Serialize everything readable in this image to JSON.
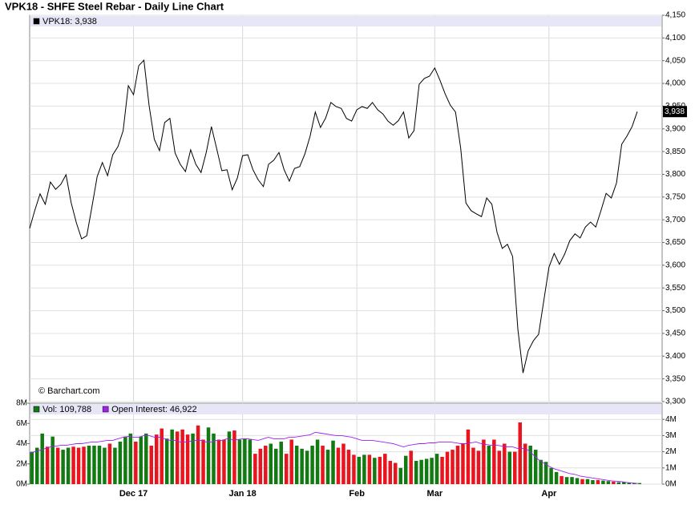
{
  "chart_data": [
    {
      "type": "line",
      "title": "VPK18 - SHFE Steel Rebar - Daily Line Chart",
      "annotation": "© Barchart.com",
      "legend": "top-left",
      "grid": true,
      "categories": [
        null,
        null,
        null,
        null,
        null,
        null,
        null,
        null,
        null,
        null,
        null,
        null,
        null,
        null,
        null,
        null,
        null,
        null,
        null,
        null,
        "Dec 17",
        null,
        null,
        null,
        null,
        null,
        null,
        null,
        null,
        null,
        null,
        null,
        null,
        null,
        null,
        null,
        null,
        null,
        null,
        null,
        null,
        "Jan 18",
        null,
        null,
        null,
        null,
        null,
        null,
        null,
        null,
        null,
        null,
        null,
        null,
        null,
        null,
        null,
        null,
        null,
        null,
        null,
        null,
        null,
        "Feb",
        null,
        null,
        null,
        null,
        null,
        null,
        null,
        null,
        null,
        null,
        null,
        null,
        null,
        null,
        "Mar",
        null,
        null,
        null,
        null,
        null,
        null,
        null,
        null,
        null,
        null,
        null,
        null,
        null,
        null,
        null,
        null,
        null,
        null,
        null,
        null,
        null,
        "Apr",
        null,
        null,
        null,
        null,
        null,
        null,
        null,
        null,
        null,
        null,
        null,
        null,
        null,
        null,
        null,
        null,
        null
      ],
      "series": [
        {
          "name": "VPK18: 3,938",
          "color": "#000000",
          "last_label": "3,938",
          "values": [
            3681,
            3721,
            3757,
            3734,
            3783,
            3767,
            3778,
            3799,
            3737,
            3693,
            3658,
            3665,
            3729,
            3795,
            3826,
            3797,
            3843,
            3861,
            3896,
            3995,
            3975,
            4039,
            4051,
            3951,
            3877,
            3852,
            3914,
            3923,
            3847,
            3822,
            3806,
            3854,
            3822,
            3804,
            3848,
            3905,
            3857,
            3808,
            3810,
            3766,
            3792,
            3841,
            3843,
            3810,
            3788,
            3773,
            3822,
            3831,
            3848,
            3810,
            3785,
            3813,
            3817,
            3845,
            3884,
            3937,
            3903,
            3924,
            3958,
            3949,
            3945,
            3923,
            3917,
            3942,
            3949,
            3945,
            3958,
            3942,
            3933,
            3917,
            3908,
            3918,
            3937,
            3880,
            3896,
            3998,
            4011,
            4016,
            4034,
            4007,
            3977,
            3952,
            3937,
            3857,
            3737,
            3720,
            3713,
            3707,
            3748,
            3734,
            3672,
            3637,
            3646,
            3619,
            3460,
            3363,
            3412,
            3434,
            3448,
            3522,
            3596,
            3626,
            3602,
            3624,
            3654,
            3669,
            3660,
            3684,
            3695,
            3684,
            3720,
            3758,
            3748,
            3781,
            3866,
            3884,
            3905,
            3938
          ]
        }
      ],
      "ylim": [
        3300,
        4150
      ],
      "yticks": [
        {
          "value": 3300,
          "label": "3,300"
        },
        {
          "value": 3350,
          "label": "3,350"
        },
        {
          "value": 3400,
          "label": "3,400"
        },
        {
          "value": 3450,
          "label": "3,450"
        },
        {
          "value": 3500,
          "label": "3,500"
        },
        {
          "value": 3550,
          "label": "3,550"
        },
        {
          "value": 3600,
          "label": "3,600"
        },
        {
          "value": 3650,
          "label": "3,650"
        },
        {
          "value": 3700,
          "label": "3,700"
        },
        {
          "value": 3750,
          "label": "3,750"
        },
        {
          "value": 3800,
          "label": "3,800"
        },
        {
          "value": 3850,
          "label": "3,850"
        },
        {
          "value": 3900,
          "label": "3,900"
        },
        {
          "value": 3950,
          "label": "3,950"
        },
        {
          "value": 4000,
          "label": "4,000"
        },
        {
          "value": 4050,
          "label": "4,050"
        },
        {
          "value": 4100,
          "label": "4,100"
        },
        {
          "value": 4150,
          "label": "4,150"
        }
      ]
    },
    {
      "type": "bar",
      "grid": true,
      "legend": "top-left",
      "categories": [
        null,
        null,
        null,
        null,
        null,
        null,
        null,
        null,
        null,
        null,
        null,
        null,
        null,
        null,
        null,
        null,
        null,
        null,
        null,
        null,
        "Dec 17",
        null,
        null,
        null,
        null,
        null,
        null,
        null,
        null,
        null,
        null,
        null,
        null,
        null,
        null,
        null,
        null,
        null,
        null,
        null,
        null,
        "Jan 18",
        null,
        null,
        null,
        null,
        null,
        null,
        null,
        null,
        null,
        null,
        null,
        null,
        null,
        null,
        null,
        null,
        null,
        null,
        null,
        null,
        null,
        "Feb",
        null,
        null,
        null,
        null,
        null,
        null,
        null,
        null,
        null,
        null,
        null,
        null,
        null,
        null,
        "Mar",
        null,
        null,
        null,
        null,
        null,
        null,
        null,
        null,
        null,
        null,
        null,
        null,
        null,
        null,
        null,
        null,
        null,
        null,
        null,
        null,
        null,
        "Apr",
        null,
        null,
        null,
        null,
        null,
        null,
        null,
        null,
        null,
        null,
        null,
        null,
        null,
        null,
        null,
        null,
        null
      ],
      "series": [
        {
          "name": "Vol: 109,788",
          "color": "#137a13",
          "down_color": "#e8141e",
          "values": [
            3200000,
            3600000,
            5000000,
            3700000,
            4700000,
            3600000,
            3400000,
            3600000,
            3700000,
            3600000,
            3700000,
            3800000,
            3800000,
            3800000,
            3600000,
            4000000,
            3600000,
            4200000,
            4700000,
            5000000,
            4200000,
            4700000,
            5000000,
            3800000,
            4900000,
            5500000,
            4500000,
            5400000,
            5200000,
            5400000,
            4900000,
            5000000,
            5800000,
            4400000,
            5600000,
            5000000,
            4400000,
            4400000,
            5200000,
            5300000,
            4400000,
            4500000,
            4400000,
            3000000,
            3500000,
            3800000,
            4000000,
            3500000,
            4200000,
            3000000,
            4400000,
            3800000,
            3500000,
            3300000,
            3800000,
            4400000,
            3800000,
            3400000,
            4300000,
            3600000,
            4000000,
            3400000,
            2900000,
            2700000,
            2900000,
            2900000,
            2600000,
            2700000,
            3000000,
            2300000,
            2100000,
            1600000,
            2800000,
            3300000,
            2300000,
            2400000,
            2500000,
            2600000,
            3000000,
            2700000,
            3200000,
            3400000,
            3800000,
            4000000,
            5400000,
            3600000,
            3300000,
            4400000,
            3800000,
            4400000,
            3300000,
            4000000,
            3200000,
            3200000,
            6100000,
            4000000,
            3800000,
            3400000,
            2400000,
            2200000,
            1600000,
            1200000,
            800000,
            700000,
            700000,
            600000,
            500000,
            500000,
            400000,
            400000,
            350000,
            300000,
            250000,
            200000,
            200000,
            150000,
            120000,
            109788
          ]
        },
        {
          "name": "Open Interest: 46,922",
          "color": "#a020f0",
          "type": "line",
          "axis": "y2",
          "values": [
            1900000,
            2000000,
            2100000,
            2200000,
            2300000,
            2350000,
            2400000,
            2400000,
            2450000,
            2500000,
            2500000,
            2550000,
            2600000,
            2600000,
            2650000,
            2700000,
            2700000,
            2800000,
            2900000,
            2950000,
            2900000,
            2900000,
            3000000,
            3000000,
            2900000,
            2900000,
            2800000,
            2700000,
            2700000,
            2600000,
            2600000,
            2650000,
            2700000,
            2700000,
            2600000,
            2600000,
            2700000,
            2700000,
            2800000,
            2750000,
            2750000,
            2800000,
            2800000,
            2750000,
            2700000,
            2800000,
            2900000,
            2800000,
            2800000,
            2800000,
            2900000,
            2900000,
            2950000,
            3000000,
            3050000,
            3200000,
            3150000,
            3100000,
            3050000,
            3000000,
            3000000,
            2950000,
            2900000,
            2800000,
            2700000,
            2700000,
            2700000,
            2650000,
            2600000,
            2550000,
            2500000,
            2400000,
            2300000,
            2400000,
            2450000,
            2500000,
            2500000,
            2550000,
            2550000,
            2600000,
            2600000,
            2600000,
            2550000,
            2500000,
            2500000,
            2550000,
            2600000,
            2500000,
            2450000,
            2400000,
            2400000,
            2350000,
            2300000,
            2300000,
            2200000,
            2200000,
            2100000,
            1800000,
            1500000,
            1300000,
            1100000,
            950000,
            850000,
            750000,
            650000,
            600000,
            500000,
            450000,
            400000,
            350000,
            300000,
            250000,
            200000,
            180000,
            150000,
            100000,
            70000,
            46922
          ]
        }
      ],
      "ylim": [
        0,
        8000000
      ],
      "yticks": [
        {
          "value": 0,
          "label": "0M"
        },
        {
          "value": 2000000,
          "label": "2M"
        },
        {
          "value": 4000000,
          "label": "4M"
        },
        {
          "value": 6000000,
          "label": "6M"
        },
        {
          "value": 8000000,
          "label": "8M"
        }
      ],
      "y2lim": [
        0,
        5000000
      ],
      "y2ticks": [
        {
          "value": 0,
          "label": "0M"
        },
        {
          "value": 1000000,
          "label": "1M"
        },
        {
          "value": 2000000,
          "label": "2M"
        },
        {
          "value": 3000000,
          "label": "3M"
        },
        {
          "value": 4000000,
          "label": "4M"
        }
      ]
    }
  ]
}
